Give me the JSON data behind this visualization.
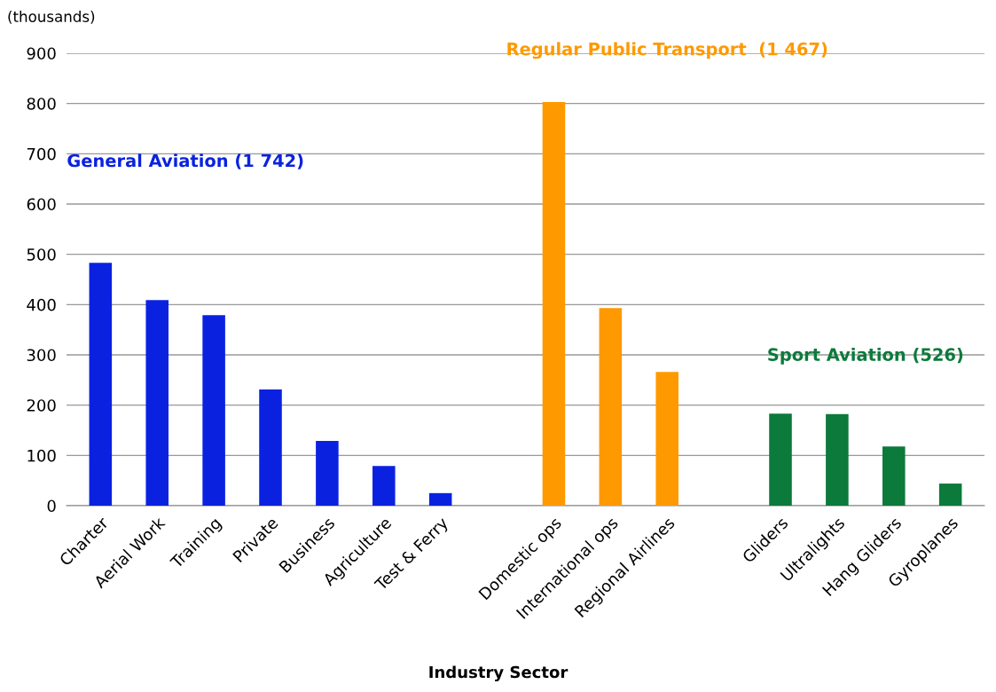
{
  "chart_data": {
    "type": "bar",
    "xlabel": "Industry Sector",
    "ylabel": "(thousands)",
    "categories": [
      "Charter",
      "Aerial Work",
      "Training",
      "Private",
      "Business",
      "Agriculture",
      "Test & Ferry",
      null,
      "Domestic ops",
      "International ops",
      "Regional Airlines",
      null,
      "Gliders",
      "Ultralights",
      "Hang Gliders",
      "Gyroplanes"
    ],
    "values": [
      483,
      409,
      379,
      231,
      129,
      79,
      25,
      null,
      803,
      393,
      266,
      null,
      183,
      182,
      118,
      44
    ],
    "colors": [
      "#0a22e0",
      "#0a22e0",
      "#0a22e0",
      "#0a22e0",
      "#0a22e0",
      "#0a22e0",
      "#0a22e0",
      null,
      "#ff9900",
      "#ff9900",
      "#ff9900",
      null,
      "#0b7a3b",
      "#0b7a3b",
      "#0b7a3b",
      "#0b7a3b"
    ],
    "ylim": [
      0,
      900
    ],
    "yticks": [
      0,
      100,
      200,
      300,
      400,
      500,
      600,
      700,
      800,
      900
    ],
    "grid": "y",
    "annotations": [
      "General Aviation (1 742)",
      "Regular Public Transport  (1 467)",
      "Sport Aviation (526)"
    ]
  }
}
